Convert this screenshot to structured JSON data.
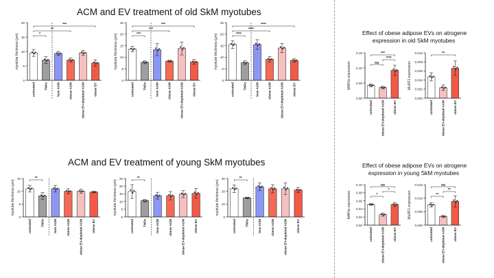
{
  "titles": {
    "old": "ACM and EV treatment of old SkM myotubes",
    "young": "ACM and EV treatment of young SkM myotubes",
    "obese_old_line1": "Effect of obese adipose EVs on atrogene",
    "obese_old_line2": "expression in old SkM myotubes",
    "obese_young_line1": "Effect of obese adipose EVs on atrogene",
    "obese_young_line2": "expression in young SkM myotubes"
  },
  "colors": {
    "untreated": "#ffffff",
    "tnf": "#9e9e9e",
    "lean_acm": "#8c97f5",
    "obese_acm": "#f46a55",
    "ev_depleted": "#f7c0c0",
    "obese_ev": "#f25a45",
    "edge": "#333333",
    "dot": "#333333"
  },
  "chart_data": [
    {
      "id": "old1",
      "type": "bar",
      "ylabel": "myotube thickness (μm)",
      "categories": [
        "untreated",
        "TNFα",
        "lean ACM",
        "obese ACM",
        "obese EV-depleted ACM",
        "obese EV"
      ],
      "values": [
        9.5,
        7.0,
        9.3,
        7.0,
        9.5,
        6.0
      ],
      "err": [
        1.2,
        1.2,
        0.7,
        0.7,
        0.9,
        1.1
      ],
      "yticks": [
        0,
        5,
        10,
        15,
        20
      ],
      "ylim": [
        0,
        20
      ],
      "sig": [
        {
          "a": 0,
          "b": 1,
          "label": "*"
        },
        {
          "a": 0,
          "b": 3,
          "label": "**"
        },
        {
          "a": 0,
          "b": 5,
          "label": "***"
        }
      ]
    },
    {
      "id": "old2",
      "type": "bar",
      "ylabel": "myotube thickness (μm)",
      "categories": [
        "untreated",
        "TNFα",
        "lean ACM",
        "obese ACM",
        "obese EV-depleted ACM",
        "obese EV"
      ],
      "values": [
        13.5,
        7.8,
        13.3,
        8.3,
        13.8,
        8.0
      ],
      "err": [
        1.2,
        0.6,
        2.6,
        0.4,
        2.8,
        1.0
      ],
      "yticks": [
        0,
        5,
        10,
        15,
        20,
        25
      ],
      "ylim": [
        0,
        25
      ],
      "sig": [
        {
          "a": 0,
          "b": 1,
          "label": "***"
        },
        {
          "a": 0,
          "b": 3,
          "label": "***"
        },
        {
          "a": 0,
          "b": 5,
          "label": "***"
        }
      ]
    },
    {
      "id": "old3",
      "type": "bar",
      "ylabel": "myotube thickness (μm)",
      "categories": [
        "untreated",
        "TNFα",
        "lean ACM",
        "obese ACM",
        "obese EV-depleted ACM",
        "obese EV"
      ],
      "values": [
        15.5,
        7.6,
        15.5,
        9.1,
        14.0,
        8.6
      ],
      "err": [
        1.7,
        0.8,
        2.1,
        1.2,
        2.0,
        0.7
      ],
      "yticks": [
        0,
        5,
        10,
        15,
        20,
        25
      ],
      "ylim": [
        0,
        25
      ],
      "sig": [
        {
          "a": 0,
          "b": 1,
          "label": "****"
        },
        {
          "a": 0,
          "b": 3,
          "label": "****"
        },
        {
          "a": 0,
          "b": 5,
          "label": "****"
        }
      ]
    },
    {
      "id": "yng1",
      "type": "bar",
      "ylabel": "myotube thickness (μm)",
      "categories": [
        "untreated",
        "TNFα",
        "lean ACM",
        "obese ACM",
        "obese EV-depleted ACM",
        "obese EV"
      ],
      "values": [
        11.0,
        8.2,
        11.0,
        10.0,
        10.0,
        9.7
      ],
      "err": [
        1.3,
        1.3,
        1.3,
        1.0,
        0.8,
        0.3
      ],
      "yticks": [
        0,
        5,
        10,
        15
      ],
      "ylim": [
        0,
        15
      ],
      "sig": [
        {
          "a": 0,
          "b": 1,
          "label": "**"
        }
      ]
    },
    {
      "id": "yng2",
      "type": "bar",
      "ylabel": "myotube thickness (μm)",
      "categories": [
        "untreated",
        "TNFα",
        "lean ACM",
        "obese ACM",
        "obese EV-depleted ACM",
        "obese EV"
      ],
      "values": [
        16.5,
        10.5,
        13.8,
        13.8,
        14.8,
        15.3
      ],
      "err": [
        4.5,
        0.8,
        2.2,
        2.7,
        2.3,
        3.2
      ],
      "yticks": [
        0,
        5,
        10,
        15,
        20,
        25
      ],
      "ylim": [
        0,
        25
      ],
      "sig": [
        {
          "a": 0,
          "b": 1,
          "label": "**"
        }
      ]
    },
    {
      "id": "yng3",
      "type": "bar",
      "ylabel": "myotube thickness (μm)",
      "categories": [
        "untreated",
        "TNFα",
        "lean ACM",
        "obese ACM",
        "obese EV-depleted ACM",
        "obese EV"
      ],
      "values": [
        22.0,
        14.8,
        23.5,
        22.0,
        22.0,
        21.0
      ],
      "err": [
        3.0,
        0.6,
        3.0,
        3.2,
        4.5,
        2.0
      ],
      "yticks": [
        0,
        10,
        20,
        30
      ],
      "ylim": [
        0,
        30
      ],
      "sig": [
        {
          "a": 0,
          "b": 1,
          "label": "**"
        }
      ]
    },
    {
      "id": "oMAF",
      "type": "bar",
      "ylabel": "MAFbx expression",
      "categories": [
        "untreated",
        "obese EV-depleted ACM",
        "obese EV"
      ],
      "values": [
        0.042,
        0.035,
        0.092
      ],
      "err": [
        0.005,
        0.004,
        0.017
      ],
      "yticks": [
        0.0,
        0.05,
        0.1,
        0.15
      ],
      "ylim": [
        0,
        0.15
      ],
      "ytick_labels": [
        "0.00",
        "0.05",
        "0.10",
        "0.15"
      ],
      "sig": [
        {
          "a": 0,
          "b": 1,
          "label": "ns"
        },
        {
          "a": 1,
          "b": 2,
          "label": "****"
        },
        {
          "a": 0,
          "b": 2,
          "label": "***"
        }
      ]
    },
    {
      "id": "oMuRF",
      "type": "bar",
      "ylabel": "MuRF1 expression",
      "categories": [
        "untreated",
        "obese EV-depleted ACM",
        "obese EV"
      ],
      "values": [
        0.0047,
        0.0023,
        0.0066
      ],
      "err": [
        0.0009,
        0.0006,
        0.0016
      ],
      "yticks": [
        0,
        0.002,
        0.004,
        0.006,
        0.008,
        0.01
      ],
      "ylim": [
        0,
        0.01
      ],
      "ytick_labels": [
        "0.000",
        "0.002",
        "0.004",
        "0.006",
        "0.008",
        "0.010"
      ],
      "sig": [
        {
          "a": 0,
          "b": 2,
          "label": "**"
        }
      ]
    },
    {
      "id": "yMAF",
      "type": "bar",
      "ylabel": "MAFbx expression",
      "categories": [
        "untreated",
        "obese EV-depleted ACM",
        "obese EV"
      ],
      "values": [
        0.051,
        0.026,
        0.051
      ],
      "err": [
        0.002,
        0.004,
        0.005
      ],
      "yticks": [
        0,
        0.02,
        0.04,
        0.06,
        0.08,
        0.1
      ],
      "ylim": [
        0,
        0.1
      ],
      "ytick_labels": [
        "0.00",
        "0.02",
        "0.04",
        "0.06",
        "0.08",
        "0.10"
      ],
      "sig": [
        {
          "a": 0,
          "b": 1,
          "label": "*"
        },
        {
          "a": 1,
          "b": 2,
          "label": "*"
        },
        {
          "a": 0,
          "b": 2,
          "label": "ns"
        }
      ]
    },
    {
      "id": "yMuRF",
      "type": "bar",
      "ylabel": "MuRF1 expression",
      "categories": [
        "untreated",
        "obese EV-depleted ACM",
        "obese EV"
      ],
      "values": [
        0.0075,
        0.0032,
        0.0088
      ],
      "err": [
        0.0008,
        0.0004,
        0.0021
      ],
      "yticks": [
        0,
        0.005,
        0.01,
        0.015
      ],
      "ylim": [
        0,
        0.015
      ],
      "ytick_labels": [
        "0.000",
        "0.005",
        "0.010",
        "0.015"
      ],
      "sig": [
        {
          "a": 0,
          "b": 1,
          "label": "**"
        },
        {
          "a": 1,
          "b": 2,
          "label": "**"
        },
        {
          "a": 0,
          "b": 2,
          "label": "ns"
        }
      ]
    }
  ]
}
